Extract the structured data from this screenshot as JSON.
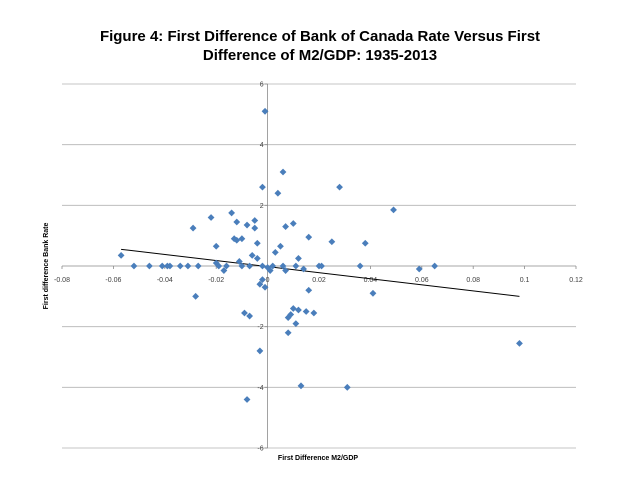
{
  "chart_data": {
    "type": "scatter",
    "title_lines": [
      "Figure 4: First Difference of Bank of Canada Rate Versus First",
      "Difference of M2/GDP: 1935-2013"
    ],
    "xlabel": "First Difference M2/GDP",
    "ylabel": "First difference Bank Rate",
    "xlim": [
      -0.08,
      0.12
    ],
    "ylim": [
      -6,
      6
    ],
    "x_ticks": [
      -0.08,
      -0.06,
      -0.04,
      -0.02,
      0,
      0.02,
      0.04,
      0.06,
      0.08,
      0.1,
      0.12
    ],
    "x_tick_labels": [
      "-0.08",
      "-0.06",
      "-0.04",
      "-0.02",
      "0",
      "0.02",
      "0.04",
      "0.06",
      "0.08",
      "0.1",
      "0.12"
    ],
    "y_ticks": [
      -6,
      -4,
      -2,
      0,
      2,
      4,
      6
    ],
    "y_tick_labels": [
      "-6",
      "-4",
      "-2",
      "0",
      "2",
      "4",
      "6"
    ],
    "grid": "horizontal",
    "legend": "none",
    "marker_color": "#4a7ebb",
    "trendline": {
      "type": "linear",
      "color": "#000000",
      "from": [
        -0.057,
        0.55
      ],
      "to": [
        0.098,
        -1.0
      ]
    },
    "points": [
      [
        -0.057,
        0.35
      ],
      [
        -0.052,
        0.0
      ],
      [
        -0.046,
        0.0
      ],
      [
        -0.041,
        0.0
      ],
      [
        -0.039,
        0.0
      ],
      [
        -0.038,
        0.0
      ],
      [
        -0.034,
        0.0
      ],
      [
        -0.031,
        0.0
      ],
      [
        -0.029,
        1.25
      ],
      [
        -0.028,
        -1.0
      ],
      [
        -0.027,
        0.0
      ],
      [
        -0.022,
        1.6
      ],
      [
        -0.02,
        0.65
      ],
      [
        -0.02,
        0.1
      ],
      [
        -0.019,
        0.0
      ],
      [
        -0.017,
        -0.15
      ],
      [
        -0.016,
        0.0
      ],
      [
        -0.014,
        1.75
      ],
      [
        -0.013,
        0.9
      ],
      [
        -0.012,
        1.45
      ],
      [
        -0.012,
        0.85
      ],
      [
        -0.011,
        0.15
      ],
      [
        -0.01,
        0.9
      ],
      [
        -0.01,
        0.0
      ],
      [
        -0.009,
        -1.55
      ],
      [
        -0.008,
        -4.4
      ],
      [
        -0.008,
        1.35
      ],
      [
        -0.007,
        0.0
      ],
      [
        -0.007,
        -1.65
      ],
      [
        -0.006,
        0.35
      ],
      [
        -0.005,
        1.5
      ],
      [
        -0.005,
        1.25
      ],
      [
        -0.004,
        0.75
      ],
      [
        -0.004,
        0.25
      ],
      [
        -0.003,
        -0.6
      ],
      [
        -0.003,
        -2.8
      ],
      [
        -0.002,
        2.6
      ],
      [
        -0.002,
        -0.45
      ],
      [
        -0.002,
        0.0
      ],
      [
        -0.001,
        5.1
      ],
      [
        -0.001,
        -0.7
      ],
      [
        0.0,
        -0.05
      ],
      [
        0.001,
        -0.15
      ],
      [
        0.002,
        0.0
      ],
      [
        0.003,
        0.45
      ],
      [
        0.004,
        2.4
      ],
      [
        0.005,
        0.65
      ],
      [
        0.006,
        3.1
      ],
      [
        0.006,
        0.0
      ],
      [
        0.007,
        1.3
      ],
      [
        0.007,
        -0.15
      ],
      [
        0.008,
        -1.7
      ],
      [
        0.008,
        -2.2
      ],
      [
        0.009,
        -1.6
      ],
      [
        0.01,
        -1.4
      ],
      [
        0.01,
        1.4
      ],
      [
        0.011,
        0.0
      ],
      [
        0.011,
        -1.9
      ],
      [
        0.012,
        0.25
      ],
      [
        0.012,
        -1.45
      ],
      [
        0.013,
        -3.95
      ],
      [
        0.014,
        -0.1
      ],
      [
        0.015,
        -1.5
      ],
      [
        0.016,
        0.95
      ],
      [
        0.016,
        -0.8
      ],
      [
        0.018,
        -1.55
      ],
      [
        0.02,
        0.0
      ],
      [
        0.021,
        0.0
      ],
      [
        0.025,
        0.8
      ],
      [
        0.028,
        2.6
      ],
      [
        0.031,
        -4.0
      ],
      [
        0.036,
        0.0
      ],
      [
        0.038,
        0.75
      ],
      [
        0.041,
        -0.9
      ],
      [
        0.049,
        1.85
      ],
      [
        0.059,
        -0.1
      ],
      [
        0.065,
        0.0
      ],
      [
        0.098,
        -2.55
      ]
    ]
  }
}
